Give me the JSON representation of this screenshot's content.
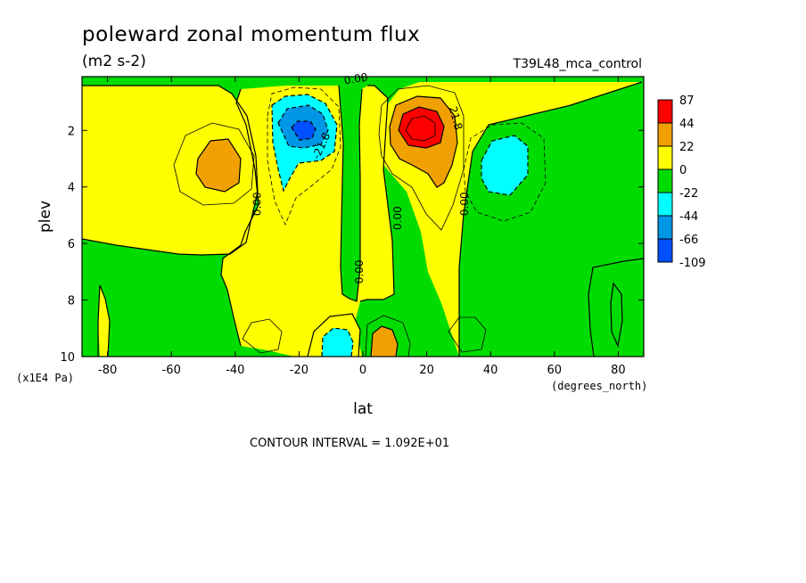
{
  "header": {
    "title": "poleward zonal momentum flux",
    "units": "(m2 s-2)",
    "run_name": "T39L48_mca_control"
  },
  "footer": {
    "contour_interval": "CONTOUR INTERVAL = 1.092E+01"
  },
  "colors": {
    "c_gt_44": "#ff0000",
    "c_22_44": "#f0a000",
    "c_0_22": "#ffff00",
    "c_m22_0": "#00dc00",
    "c_m44_m22": "#00ffff",
    "c_m66_m44": "#0096e6",
    "c_lt_m66": "#0050ff"
  },
  "chart_data": {
    "type": "contour",
    "title": "poleward zonal momentum flux",
    "units": "(m2 s-2)",
    "xlabel": "lat",
    "x_units": "(degrees_north)",
    "ylabel": "plev",
    "y_units": "(x1E4 Pa)",
    "xlim": [
      -88,
      88
    ],
    "ylim": [
      10,
      0.1
    ],
    "x_ticks": [
      -80,
      -60,
      -40,
      -20,
      0,
      20,
      40,
      60,
      80
    ],
    "y_ticks": [
      2,
      4,
      6,
      8,
      10
    ],
    "contour_interval": 10.92,
    "colorbar_levels": [
      87,
      44,
      22,
      0,
      -22,
      -44,
      -66,
      -109
    ],
    "contour_labels": [
      {
        "text": "0.00",
        "lat": -2,
        "plev": 0.3,
        "angle": -10
      },
      {
        "text": "-21.8",
        "lat": -12,
        "plev": 2.6,
        "angle": -65
      },
      {
        "text": "21.8",
        "lat": 28,
        "plev": 1.6,
        "angle": 75
      },
      {
        "text": "0.00",
        "lat": -32,
        "plev": 4.6,
        "angle": -90
      },
      {
        "text": "0.00",
        "lat": 12,
        "plev": 5.1,
        "angle": -90
      },
      {
        "text": "0.00",
        "lat": 33,
        "plev": 4.6,
        "angle": -90
      },
      {
        "text": "0.00",
        "lat": 0,
        "plev": 7.0,
        "angle": -90
      }
    ],
    "features": [
      {
        "name": "northern subtropical jet flux maximum",
        "lat": 19,
        "plev": 2.0,
        "value": 80
      },
      {
        "name": "southern subtropical jet flux minimum",
        "lat": -19,
        "plev": 2.0,
        "value": -80
      },
      {
        "name": "southern midlatitude positive centre",
        "lat": -46,
        "plev": 3.0,
        "value": 26
      },
      {
        "name": "northern midlatitude negative centre",
        "lat": 44,
        "plev": 3.0,
        "value": -30
      },
      {
        "name": "near-surface positive centre",
        "lat": 7,
        "plev": 9.5,
        "value": 28
      },
      {
        "name": "near-surface negative centre",
        "lat": -8,
        "plev": 9.5,
        "value": -28
      }
    ],
    "grid": false,
    "legend": "colorbar right"
  }
}
